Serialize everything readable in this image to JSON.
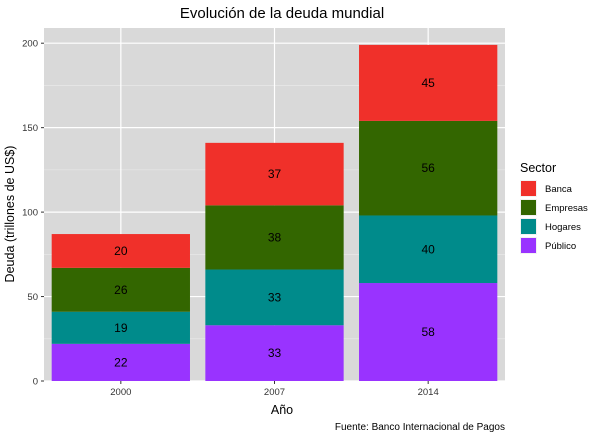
{
  "chart_data": {
    "type": "bar",
    "stacked": true,
    "title": "Evolución de la deuda mundial",
    "xlabel": "Año",
    "ylabel": "Deuda (trillones de US$)",
    "caption": "Fuente: Banco Internacional de Pagos",
    "categories": [
      "2000",
      "2007",
      "2014"
    ],
    "ylim": [
      0,
      209
    ],
    "yticks": [
      0,
      50,
      100,
      150,
      200
    ],
    "grid": true,
    "legend_position": "right",
    "legend_title": "Sector",
    "series": [
      {
        "name": "Público",
        "color": "#9933ff",
        "values": [
          22,
          33,
          58
        ]
      },
      {
        "name": "Hogares",
        "color": "#008b8b",
        "values": [
          19,
          33,
          40
        ]
      },
      {
        "name": "Empresas",
        "color": "#336600",
        "values": [
          26,
          38,
          56
        ]
      },
      {
        "name": "Banca",
        "color": "#f0302a",
        "values": [
          20,
          37,
          45
        ]
      }
    ],
    "legend_order": [
      "Banca",
      "Empresas",
      "Hogares",
      "Público"
    ]
  }
}
